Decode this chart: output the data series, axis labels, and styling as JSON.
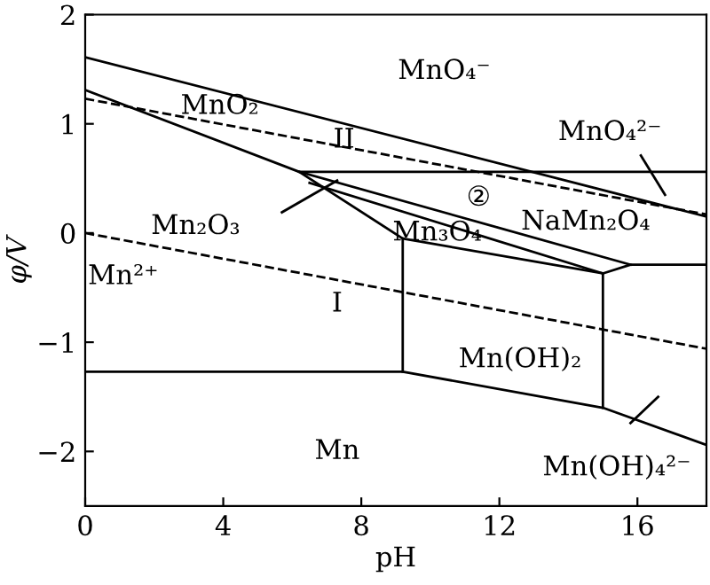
{
  "chart_data": {
    "type": "line",
    "xlabel": "pH",
    "ylabel": "φ/V",
    "xlim": [
      0,
      18
    ],
    "ylim": [
      -2.5,
      2
    ],
    "xticks": [
      0,
      4,
      8,
      12,
      16
    ],
    "yticks": [
      -2,
      -1,
      0,
      1,
      2
    ],
    "grid": false,
    "legend": false,
    "tick_labels": true,
    "series": [
      {
        "color": "#000000",
        "line_style": "solid",
        "x": [
          0,
          18
        ],
        "values": [
          1.61,
          0.15
        ]
      },
      {
        "color": "#000000",
        "line_style": "solid",
        "x": [
          0,
          6.2,
          18
        ],
        "values": [
          1.31,
          0.56,
          0.56
        ]
      },
      {
        "color": "#000000",
        "line_style": "solid",
        "x": [
          6.2,
          9.2,
          15.0
        ],
        "values": [
          0.56,
          -0.05,
          -0.37
        ]
      },
      {
        "color": "#000000",
        "line_style": "solid",
        "x": [
          6.2,
          15.8
        ],
        "values": [
          0.56,
          -0.29
        ]
      },
      {
        "color": "#000000",
        "line_style": "solid",
        "x": [
          6.5,
          15.0,
          15.8,
          18
        ],
        "values": [
          0.46,
          -0.37,
          -0.29,
          -0.29
        ]
      },
      {
        "color": "#000000",
        "line_style": "solid",
        "x": [
          9.2,
          9.2
        ],
        "values": [
          -0.05,
          -1.27
        ]
      },
      {
        "color": "#000000",
        "line_style": "solid",
        "x": [
          15.0,
          15.0
        ],
        "values": [
          -0.37,
          -1.6
        ]
      },
      {
        "color": "#000000",
        "line_style": "solid",
        "x": [
          0,
          9.2,
          15.0,
          18
        ],
        "values": [
          -1.27,
          -1.27,
          -1.6,
          -1.94
        ]
      },
      {
        "color": "#000000",
        "line_style": "dashed",
        "x": [
          0,
          18
        ],
        "values": [
          1.23,
          0.17
        ]
      },
      {
        "color": "#000000",
        "line_style": "dashed",
        "x": [
          0,
          18
        ],
        "values": [
          0,
          -1.06
        ]
      },
      {
        "color": "#000000",
        "line_style": "solid",
        "x": [
          5.7,
          7.3
        ],
        "values": [
          0.19,
          0.48
        ]
      },
      {
        "color": "#000000",
        "line_style": "solid",
        "x": [
          16.1,
          16.8
        ],
        "values": [
          0.71,
          0.35
        ]
      },
      {
        "color": "#000000",
        "line_style": "solid",
        "x": [
          15.8,
          16.6
        ],
        "values": [
          -1.74,
          -1.5
        ]
      }
    ],
    "annotations": [
      "MnO₄⁻",
      "MnO₂",
      "II",
      "MnO₄²⁻",
      "②",
      "NaMn₂O₄",
      "Mn₂O₃",
      "Mn₃O₄",
      "Mn²⁺",
      "I",
      "Mn(OH)₂",
      "Mn",
      "Mn(OH)₄²⁻"
    ]
  }
}
